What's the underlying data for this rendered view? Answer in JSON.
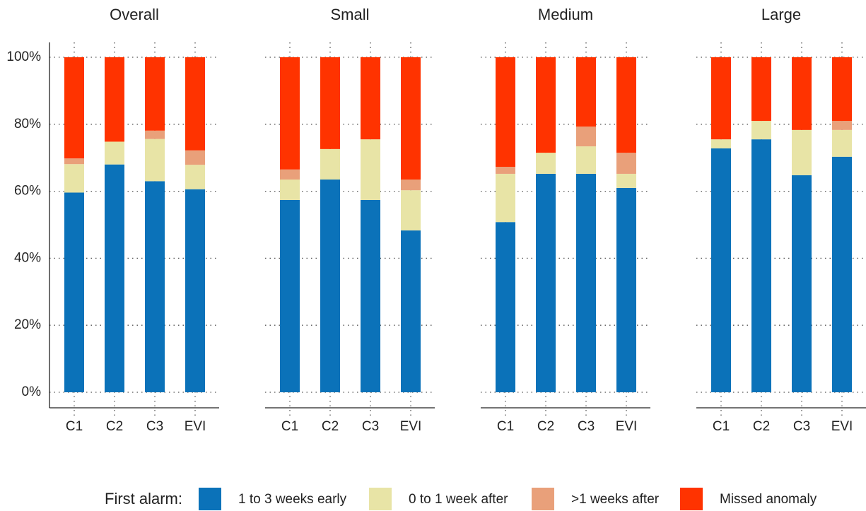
{
  "legend_title": "First alarm:",
  "chart_data": [
    {
      "type": "stacked-bar",
      "title": "Overall",
      "categories": [
        "C1",
        "C2",
        "C3",
        "EVI"
      ],
      "series": [
        {
          "name": "1 to 3 weeks early",
          "color": "#0b72b9",
          "values": [
            59.6,
            68,
            63,
            60.6
          ]
        },
        {
          "name": "0 to 1 week after",
          "color": "#e8e4a6",
          "values": [
            8.5,
            6.8,
            12.6,
            7.3
          ]
        },
        {
          "name": ">1 weeks after",
          "color": "#e9a07a",
          "values": [
            1.7,
            0,
            2.5,
            4.3
          ]
        },
        {
          "name": "Missed anomaly",
          "color": "#ff3300",
          "values": [
            30.2,
            25.2,
            21.9,
            27.8
          ]
        }
      ],
      "ylim": [
        0,
        100
      ],
      "yticks": [
        {
          "value": 0,
          "label": "0%"
        },
        {
          "value": 20,
          "label": "20%"
        },
        {
          "value": 40,
          "label": "40%"
        },
        {
          "value": 60,
          "label": "60%"
        },
        {
          "value": 80,
          "label": "80%"
        },
        {
          "value": 100,
          "label": "100%"
        }
      ],
      "grid": true
    },
    {
      "type": "stacked-bar",
      "title": "Small",
      "categories": [
        "C1",
        "C2",
        "C3",
        "EVI"
      ],
      "series": [
        {
          "name": "1 to 3 weeks early",
          "color": "#0b72b9",
          "values": [
            57.4,
            63.5,
            57.4,
            48.3
          ]
        },
        {
          "name": "0 to 1 week after",
          "color": "#e8e4a6",
          "values": [
            6.1,
            9.1,
            18.1,
            12
          ]
        },
        {
          "name": ">1 weeks after",
          "color": "#e9a07a",
          "values": [
            3,
            0,
            0,
            3.2
          ]
        },
        {
          "name": "Missed anomaly",
          "color": "#ff3300",
          "values": [
            33.5,
            27.4,
            24.5,
            36.5
          ]
        }
      ],
      "ylim": [
        0,
        100
      ],
      "yticks": [
        0,
        20,
        40,
        60,
        80,
        100
      ],
      "grid": true
    },
    {
      "type": "stacked-bar",
      "title": "Medium",
      "categories": [
        "C1",
        "C2",
        "C3",
        "EVI"
      ],
      "series": [
        {
          "name": "1 to 3 weeks early",
          "color": "#0b72b9",
          "values": [
            50.8,
            65.2,
            65.2,
            61
          ]
        },
        {
          "name": "0 to 1 week after",
          "color": "#e8e4a6",
          "values": [
            14.4,
            6.3,
            8.2,
            4.2
          ]
        },
        {
          "name": ">1 weeks after",
          "color": "#e9a07a",
          "values": [
            2.1,
            0,
            5.9,
            6.3
          ]
        },
        {
          "name": "Missed anomaly",
          "color": "#ff3300",
          "values": [
            32.7,
            28.5,
            20.7,
            28.5
          ]
        }
      ],
      "ylim": [
        0,
        100
      ],
      "yticks": [
        0,
        20,
        40,
        60,
        80,
        100
      ],
      "grid": true
    },
    {
      "type": "stacked-bar",
      "title": "Large",
      "categories": [
        "C1",
        "C2",
        "C3",
        "EVI"
      ],
      "series": [
        {
          "name": "1 to 3 weeks early",
          "color": "#0b72b9",
          "values": [
            72.8,
            75.5,
            64.8,
            70.3
          ]
        },
        {
          "name": "0 to 1 week after",
          "color": "#e8e4a6",
          "values": [
            2.7,
            5.5,
            13.5,
            8
          ]
        },
        {
          "name": ">1 weeks after",
          "color": "#e9a07a",
          "values": [
            0,
            0,
            0,
            2.7
          ]
        },
        {
          "name": "Missed anomaly",
          "color": "#ff3300",
          "values": [
            24.5,
            19,
            21.7,
            19
          ]
        }
      ],
      "ylim": [
        0,
        100
      ],
      "yticks": [
        0,
        20,
        40,
        60,
        80,
        100
      ],
      "grid": true
    }
  ]
}
